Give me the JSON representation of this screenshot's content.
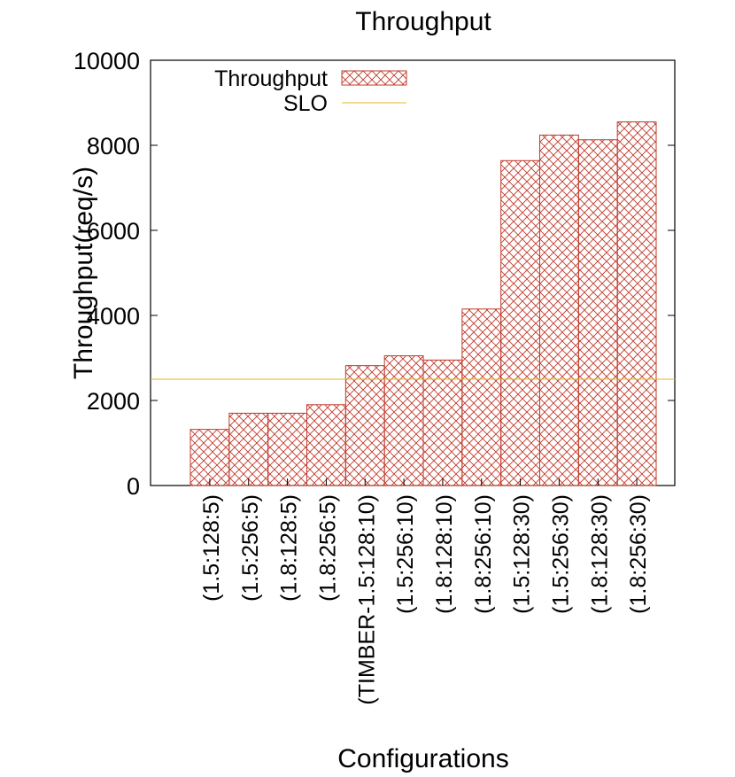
{
  "chart_data": {
    "type": "bar",
    "title": "Throughput",
    "x_label": "Configurations",
    "y_label": "Throughput(req/s)",
    "categories": [
      "(1.5:128:5)",
      "(1.5:256:5)",
      "(1.8:128:5)",
      "(1.8:256:5)",
      "(TIMBER-1.5:128:10)",
      "(1.5:256:10)",
      "(1.8:128:10)",
      "(1.8:256:10)",
      "(1.5:128:30)",
      "(1.5:256:30)",
      "(1.8:128:30)",
      "(1.8:256:30)"
    ],
    "series": [
      {
        "name": "Throughput",
        "color": "#c0392b",
        "values": [
          1320,
          1700,
          1700,
          1900,
          2820,
          3050,
          2950,
          4150,
          7640,
          8240,
          8130,
          8550
        ]
      }
    ],
    "reference_lines": [
      {
        "name": "SLO",
        "value": 2500,
        "color": "#e6b422"
      }
    ],
    "ylim": [
      0,
      10000
    ],
    "yticks": [
      0,
      2000,
      4000,
      6000,
      8000,
      10000
    ],
    "legend": "top-left"
  }
}
